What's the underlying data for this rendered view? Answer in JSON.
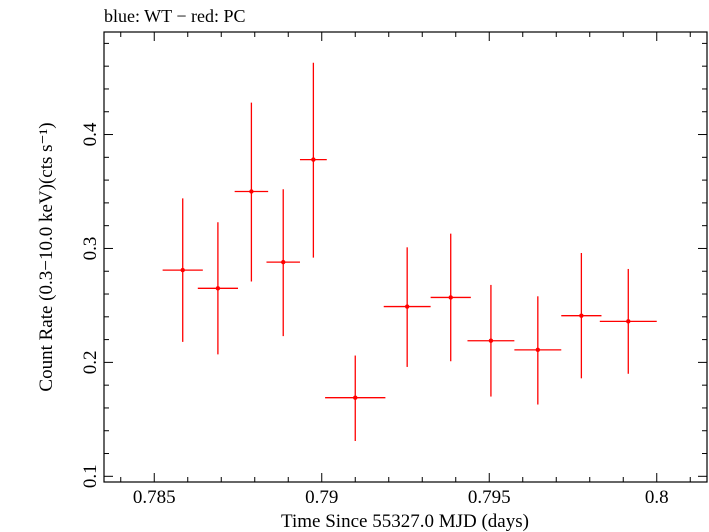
{
  "chart_data": {
    "type": "scatter",
    "title": "blue: WT − red: PC",
    "xlabel": "Time Since 55327.0 MJD (days)",
    "ylabel": "Count Rate (0.3−10.0 keV)(cts s⁻¹)",
    "xlim": [
      0.7835,
      0.8015
    ],
    "ylim": [
      0.095,
      0.49
    ],
    "xticks": [
      {
        "value": 0.785,
        "label": "0.785"
      },
      {
        "value": 0.79,
        "label": "0.79"
      },
      {
        "value": 0.795,
        "label": "0.795"
      },
      {
        "value": 0.8,
        "label": "0.8"
      }
    ],
    "yticks": [
      {
        "value": 0.1,
        "label": "0.1"
      },
      {
        "value": 0.2,
        "label": "0.2"
      },
      {
        "value": 0.3,
        "label": "0.3"
      },
      {
        "value": 0.4,
        "label": "0.4"
      }
    ],
    "grid": false,
    "series": [
      {
        "color": "#ff0000",
        "points": [
          {
            "x": 0.78585,
            "y": 0.281,
            "xlo": 0.78525,
            "xhi": 0.78645,
            "ylo": 0.218,
            "yhi": 0.344
          },
          {
            "x": 0.7869,
            "y": 0.265,
            "xlo": 0.7863,
            "xhi": 0.7875,
            "ylo": 0.207,
            "yhi": 0.323
          },
          {
            "x": 0.7879,
            "y": 0.35,
            "xlo": 0.7874,
            "xhi": 0.7884,
            "ylo": 0.271,
            "yhi": 0.428
          },
          {
            "x": 0.78885,
            "y": 0.288,
            "xlo": 0.78835,
            "xhi": 0.78935,
            "ylo": 0.223,
            "yhi": 0.352
          },
          {
            "x": 0.78975,
            "y": 0.378,
            "xlo": 0.78935,
            "xhi": 0.79015,
            "ylo": 0.292,
            "yhi": 0.463
          },
          {
            "x": 0.791,
            "y": 0.169,
            "xlo": 0.7901,
            "xhi": 0.7919,
            "ylo": 0.131,
            "yhi": 0.206
          },
          {
            "x": 0.79255,
            "y": 0.249,
            "xlo": 0.79185,
            "xhi": 0.79325,
            "ylo": 0.196,
            "yhi": 0.301
          },
          {
            "x": 0.79385,
            "y": 0.257,
            "xlo": 0.79325,
            "xhi": 0.79445,
            "ylo": 0.201,
            "yhi": 0.313
          },
          {
            "x": 0.79505,
            "y": 0.219,
            "xlo": 0.79435,
            "xhi": 0.79575,
            "ylo": 0.17,
            "yhi": 0.268
          },
          {
            "x": 0.79645,
            "y": 0.211,
            "xlo": 0.79575,
            "xhi": 0.79715,
            "ylo": 0.163,
            "yhi": 0.258
          },
          {
            "x": 0.79775,
            "y": 0.241,
            "xlo": 0.79715,
            "xhi": 0.79835,
            "ylo": 0.186,
            "yhi": 0.296
          },
          {
            "x": 0.79915,
            "y": 0.236,
            "xlo": 0.7983,
            "xhi": 0.8,
            "ylo": 0.19,
            "yhi": 0.282
          }
        ]
      }
    ]
  }
}
